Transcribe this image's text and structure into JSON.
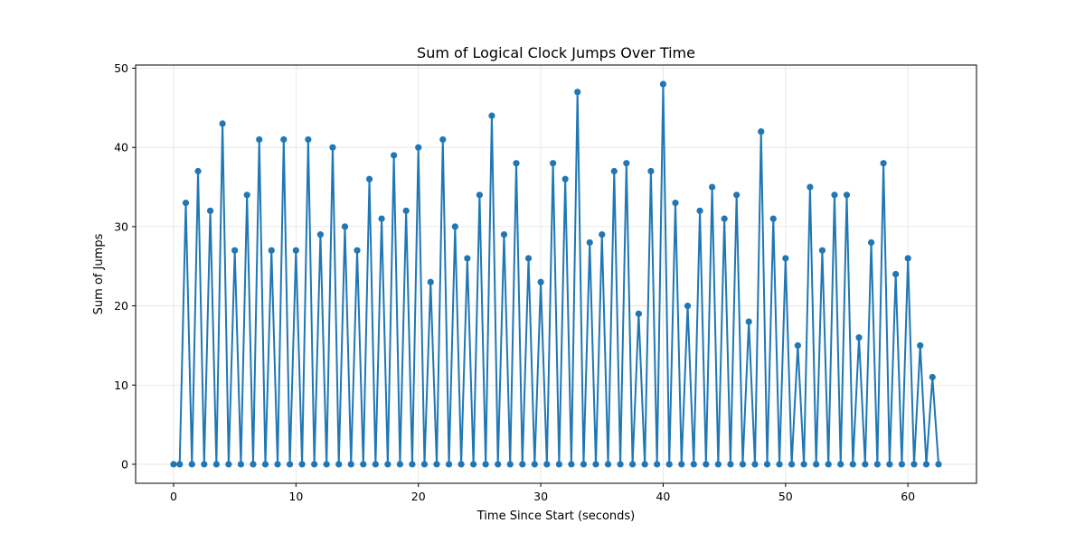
{
  "chart_data": {
    "type": "line",
    "title": "Sum of Logical Clock Jumps Over Time",
    "xlabel": "Time Since Start (seconds)",
    "ylabel": "Sum of Jumps",
    "xlim": [
      -3.1,
      65.6
    ],
    "ylim": [
      -2.4,
      50.4
    ],
    "xticks": [
      0,
      10,
      20,
      30,
      40,
      50,
      60
    ],
    "yticks": [
      0,
      10,
      20,
      30,
      40,
      50
    ],
    "grid": true,
    "marker": "circle",
    "series_color": "#1f77b4",
    "grid_color": "#e3e3e3",
    "series": [
      {
        "x": [
          0,
          0.5,
          1,
          1.5,
          2,
          2.5,
          3,
          3.5,
          4,
          4.5,
          5,
          5.5,
          6,
          6.5,
          7,
          7.5,
          8,
          8.5,
          9,
          9.5,
          10,
          10.5,
          11,
          11.5,
          12,
          12.5,
          13,
          13.5,
          14,
          14.5,
          15,
          15.5,
          16,
          16.5,
          17,
          17.5,
          18,
          18.5,
          19,
          19.5,
          20,
          20.5,
          21,
          21.5,
          22,
          22.5,
          23,
          23.5,
          24,
          24.5,
          25,
          25.5,
          26,
          26.5,
          27,
          27.5,
          28,
          28.5,
          29,
          29.5,
          30,
          30.5,
          31,
          31.5,
          32,
          32.5,
          33,
          33.5,
          34,
          34.5,
          35,
          35.5,
          36,
          36.5,
          37,
          37.5,
          38,
          38.5,
          39,
          39.5,
          40,
          40.5,
          41,
          41.5,
          42,
          42.5,
          43,
          43.5,
          44,
          44.5,
          45,
          45.5,
          46,
          46.5,
          47,
          47.5,
          48,
          48.5,
          49,
          49.5,
          50,
          50.5,
          51,
          51.5,
          52,
          52.5,
          53,
          53.5,
          54,
          54.5,
          55,
          55.5,
          56,
          56.5,
          57,
          57.5,
          58,
          58.5,
          59,
          59.5,
          60,
          60.5,
          61,
          61.5,
          62,
          62.5
        ],
        "y": [
          0,
          0,
          33,
          0,
          37,
          0,
          32,
          0,
          43,
          0,
          27,
          0,
          34,
          0,
          41,
          0,
          27,
          0,
          41,
          0,
          27,
          0,
          41,
          0,
          29,
          0,
          40,
          0,
          30,
          0,
          27,
          0,
          36,
          0,
          31,
          0,
          39,
          0,
          32,
          0,
          40,
          0,
          23,
          0,
          41,
          0,
          30,
          0,
          26,
          0,
          34,
          0,
          44,
          0,
          29,
          0,
          38,
          0,
          26,
          0,
          23,
          0,
          38,
          0,
          36,
          0,
          47,
          0,
          28,
          0,
          29,
          0,
          37,
          0,
          38,
          0,
          19,
          0,
          37,
          0,
          48,
          0,
          33,
          0,
          20,
          0,
          32,
          0,
          35,
          0,
          31,
          0,
          34,
          0,
          18,
          0,
          42,
          0,
          31,
          0,
          26,
          0,
          15,
          0,
          35,
          0,
          27,
          0,
          34,
          0,
          34,
          0,
          16,
          0,
          28,
          0,
          38,
          0,
          24,
          0,
          26,
          0,
          15,
          0,
          11,
          0
        ]
      }
    ]
  }
}
